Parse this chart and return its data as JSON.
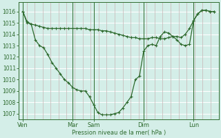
{
  "bg_color": "#d4eee8",
  "grid_h_color": "#ffffff",
  "grid_v_color": "#c8b4b4",
  "line_color": "#2d6a2d",
  "ylabel_text": "Pression niveau de la mer( hPa )",
  "ylim": [
    1006.5,
    1016.8
  ],
  "yticks": [
    1007,
    1008,
    1009,
    1010,
    1011,
    1012,
    1013,
    1014,
    1015,
    1016
  ],
  "xlim": [
    0,
    24
  ],
  "num_vcols": 25,
  "day_labels": [
    "Ven",
    "Mar",
    "Sam",
    "Dim",
    "Lun"
  ],
  "day_x": [
    0.5,
    6.5,
    9.0,
    15.0,
    21.0
  ],
  "day_line_x": [
    0.5,
    6.5,
    9.0,
    15.0,
    21.0
  ],
  "series1_x": [
    0.5,
    1.0,
    1.5,
    2.0,
    2.5,
    3.0,
    3.5,
    4.0,
    4.5,
    5.0,
    5.5,
    6.0,
    6.5,
    7.0,
    7.5,
    8.0,
    8.5,
    9.0,
    9.5,
    10.0,
    10.5,
    11.0,
    11.5,
    12.0,
    12.5,
    13.0,
    13.5,
    14.0,
    14.5,
    15.0,
    15.5,
    16.0,
    16.5,
    17.0,
    17.5,
    18.0,
    18.5,
    19.0,
    19.5,
    20.0,
    20.5,
    21.0,
    21.5,
    22.0,
    22.5,
    23.0,
    23.5
  ],
  "series1_y": [
    1016.0,
    1015.1,
    1014.9,
    1014.8,
    1014.7,
    1014.6,
    1014.5,
    1014.5,
    1014.5,
    1014.5,
    1014.5,
    1014.5,
    1014.5,
    1014.5,
    1014.5,
    1014.5,
    1014.4,
    1014.4,
    1014.4,
    1014.3,
    1014.3,
    1014.2,
    1014.1,
    1014.0,
    1013.9,
    1013.8,
    1013.7,
    1013.7,
    1013.6,
    1013.6,
    1013.6,
    1013.7,
    1013.7,
    1013.6,
    1013.6,
    1013.7,
    1013.8,
    1013.8,
    1013.7,
    1014.0,
    1014.5,
    1015.2,
    1015.8,
    1016.1,
    1016.1,
    1016.0,
    1016.0
  ],
  "series2_x": [
    0.5,
    1.0,
    1.5,
    2.0,
    2.5,
    3.0,
    3.5,
    4.0,
    4.5,
    5.0,
    5.5,
    6.0,
    6.5,
    7.0,
    7.5,
    8.0,
    8.5,
    9.0,
    9.5,
    10.0,
    10.5,
    11.0,
    11.5,
    12.0,
    12.5,
    13.0,
    13.5,
    14.0,
    14.5,
    15.0,
    15.5,
    16.0,
    16.5,
    17.0,
    17.5,
    18.0,
    18.5,
    19.0,
    19.5,
    20.0,
    20.5,
    21.0,
    21.5,
    22.0,
    22.5,
    23.0,
    23.5
  ],
  "series2_y": [
    1016.0,
    1015.0,
    1014.9,
    1013.5,
    1013.0,
    1012.8,
    1012.2,
    1011.5,
    1011.0,
    1010.5,
    1010.0,
    1009.7,
    1009.3,
    1009.1,
    1009.0,
    1009.0,
    1008.5,
    1007.8,
    1007.1,
    1006.9,
    1006.9,
    1006.9,
    1007.0,
    1007.1,
    1007.5,
    1008.0,
    1008.5,
    1010.0,
    1010.3,
    1012.5,
    1013.0,
    1013.1,
    1013.0,
    1013.8,
    1014.2,
    1014.1,
    1013.8,
    1013.5,
    1013.1,
    1013.0,
    1013.1,
    1015.2,
    1015.8,
    1016.1,
    1016.1,
    1016.0,
    1016.0
  ]
}
